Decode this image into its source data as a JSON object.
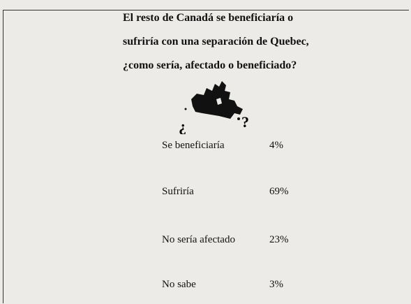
{
  "title": [
    "El resto de Canadá se beneficiaría o",
    "sufriría con una separación de Quebec,",
    "¿como sería, afectado o beneficiado?"
  ],
  "map": {
    "left_mark": "¿",
    "right_mark": "?"
  },
  "table": {
    "rows": [
      [
        "Se beneficiaría",
        "4%"
      ],
      [
        "Sufriría",
        "69%"
      ],
      [
        "No sería afectado",
        "23%"
      ],
      [
        "No sabe",
        "3%"
      ]
    ]
  }
}
